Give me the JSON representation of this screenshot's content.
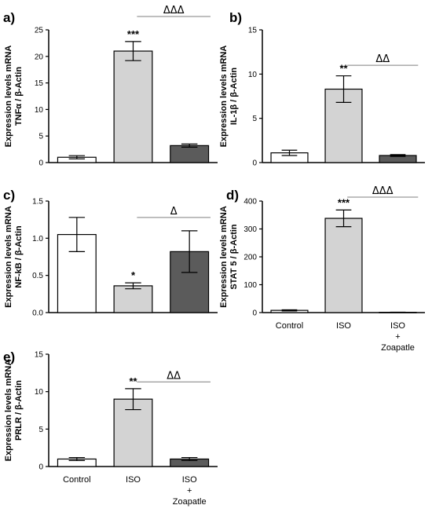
{
  "categories": [
    "Control",
    "ISO",
    "ISO + Zoapatle"
  ],
  "category_label_lines": [
    [
      "Control"
    ],
    [
      "ISO"
    ],
    [
      "ISO",
      "+",
      "Zoapatle"
    ]
  ],
  "colors": {
    "control": "#ffffff",
    "iso": "#d3d3d3",
    "zoapatle": "#5b5b5b",
    "axis": "#000000",
    "bracket": "#7f7f7f"
  },
  "chart_data": [
    {
      "panel": "a)",
      "type": "bar",
      "ylabel_lines": [
        "Expression levels mRNA",
        "TNFα / β-Actin"
      ],
      "ylim": [
        0,
        25
      ],
      "yticks": [
        0,
        5,
        10,
        15,
        20,
        25
      ],
      "values": [
        1.0,
        21.0,
        3.2
      ],
      "errors": [
        0.3,
        1.8,
        0.3
      ],
      "significance": [
        "",
        "***",
        ""
      ],
      "comparison": "ΔΔΔ"
    },
    {
      "panel": "b)",
      "type": "bar",
      "ylabel_lines": [
        "Expression levels mRNA",
        "IL-1β / β-Actin"
      ],
      "ylim": [
        0,
        15
      ],
      "yticks": [
        0,
        5,
        10,
        15
      ],
      "values": [
        1.1,
        8.3,
        0.8
      ],
      "errors": [
        0.3,
        1.5,
        0.1
      ],
      "significance": [
        "",
        "**",
        ""
      ],
      "comparison": "ΔΔ"
    },
    {
      "panel": "c)",
      "type": "bar",
      "ylabel_lines": [
        "Expression levels mRNA",
        "NF-kB / β-Actin"
      ],
      "ylim": [
        0,
        1.5
      ],
      "yticks": [
        0.0,
        0.5,
        1.0,
        1.5
      ],
      "values": [
        1.05,
        0.36,
        0.82
      ],
      "errors": [
        0.23,
        0.04,
        0.28
      ],
      "significance": [
        "",
        "*",
        ""
      ],
      "comparison": "Δ"
    },
    {
      "panel": "d)",
      "type": "bar",
      "ylabel_lines": [
        "Expression levels mRNA",
        "STAT 5 / β-Actin"
      ],
      "ylim": [
        0,
        400
      ],
      "yticks": [
        0,
        100,
        200,
        300,
        400
      ],
      "values": [
        8,
        338,
        1
      ],
      "errors": [
        2,
        30,
        0.5
      ],
      "significance": [
        "",
        "***",
        ""
      ],
      "comparison": "ΔΔΔ"
    },
    {
      "panel": "e)",
      "type": "bar",
      "ylabel_lines": [
        "Expression levels mRNA",
        "PRLR / β-Actin"
      ],
      "ylim": [
        0,
        15
      ],
      "yticks": [
        0,
        5,
        10,
        15
      ],
      "values": [
        1.0,
        9.0,
        1.0
      ],
      "errors": [
        0.2,
        1.4,
        0.2
      ],
      "significance": [
        "",
        "**",
        ""
      ],
      "comparison": "ΔΔ"
    }
  ]
}
